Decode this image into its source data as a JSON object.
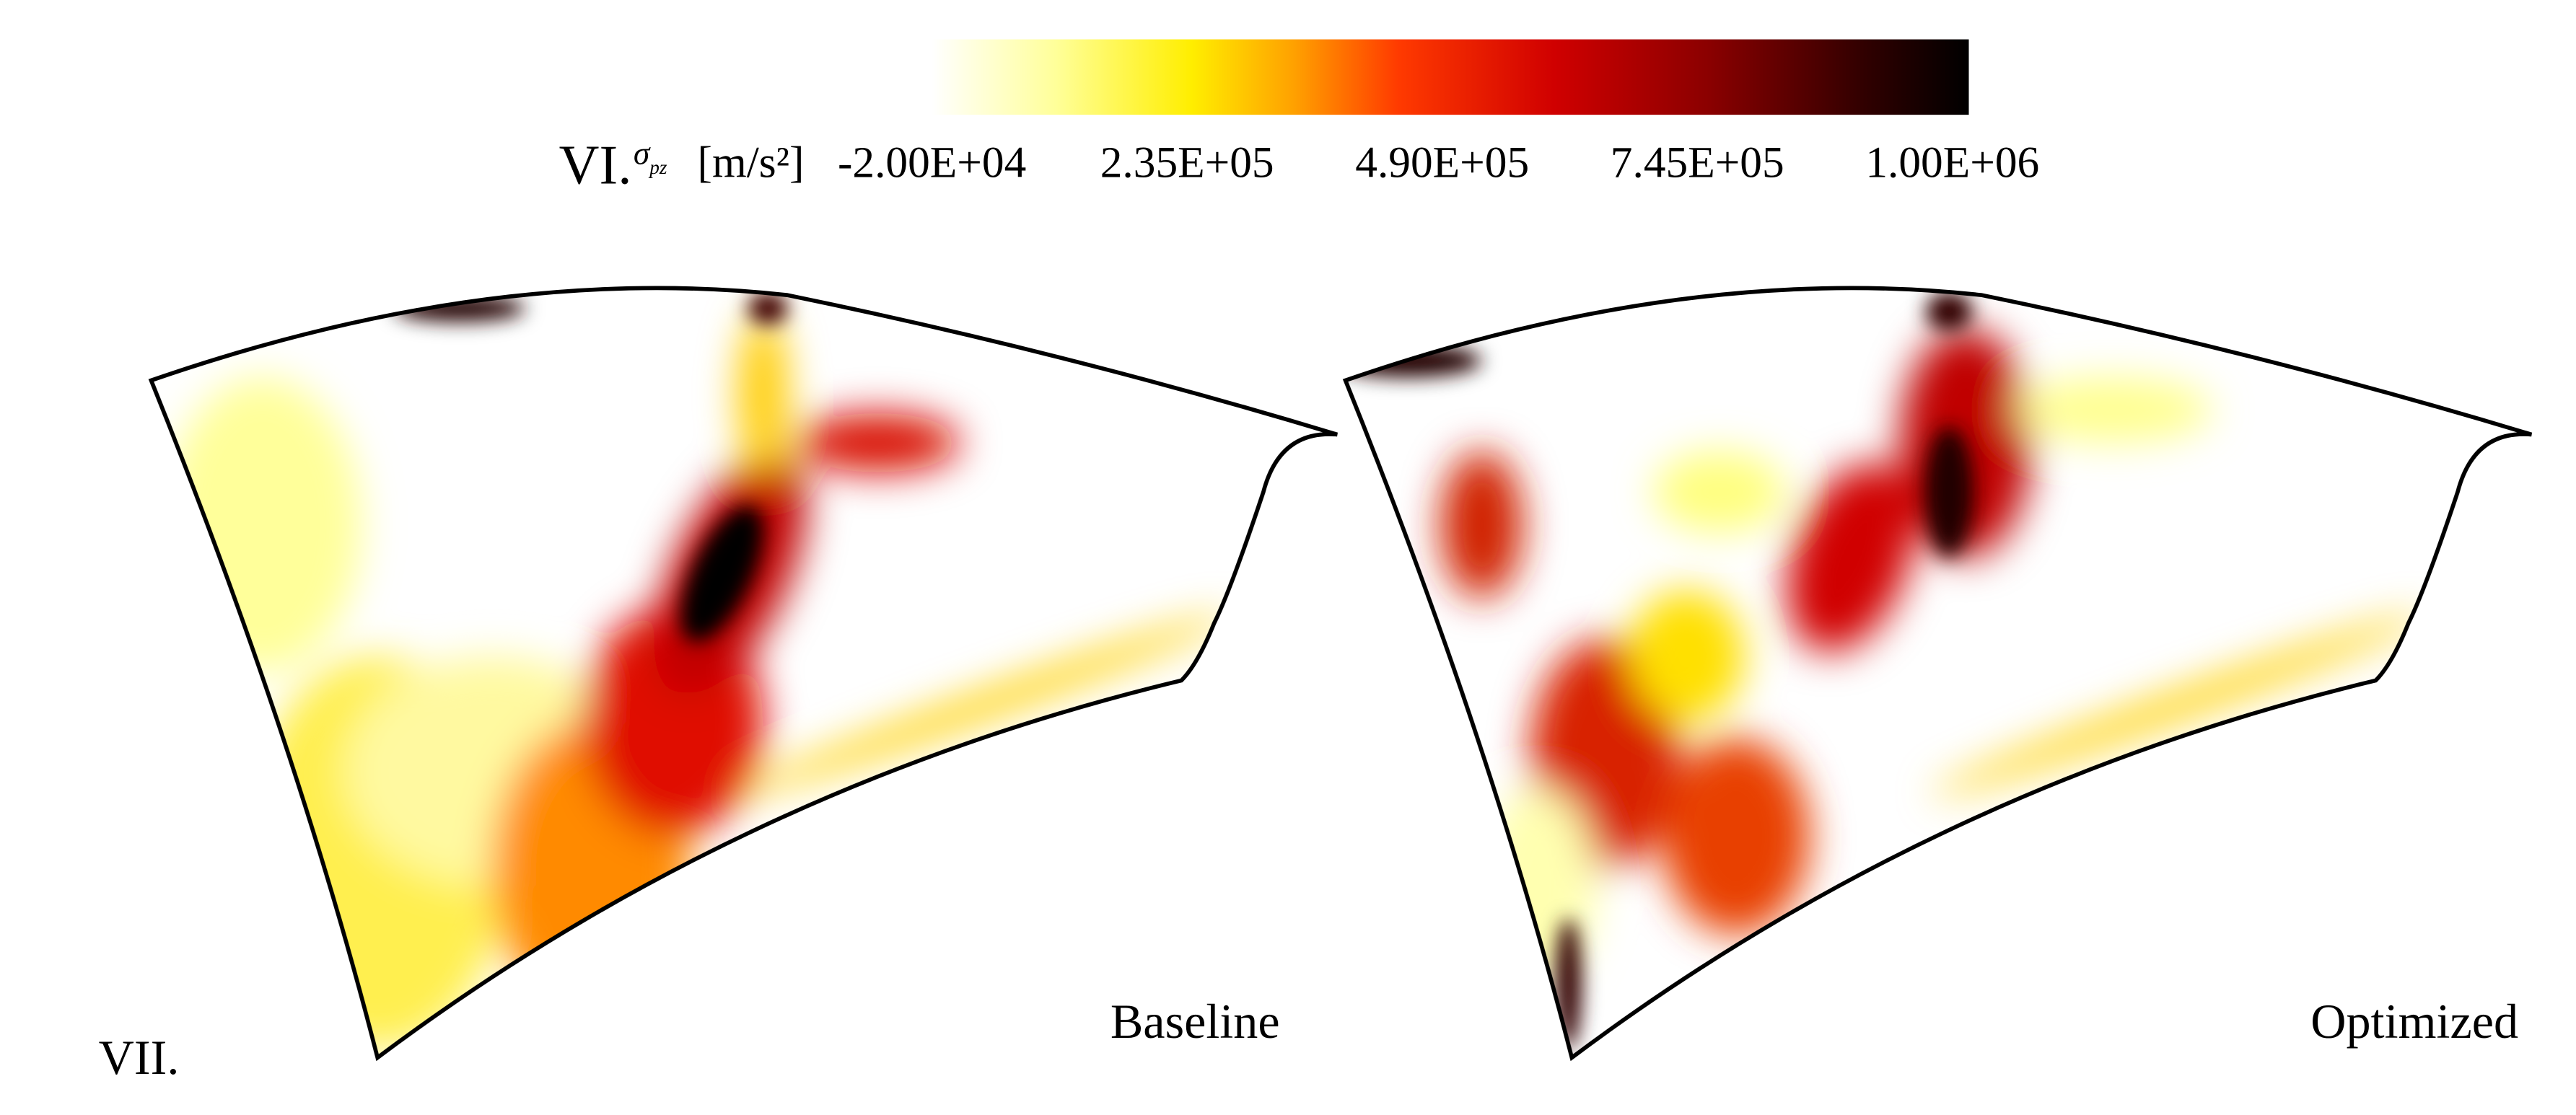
{
  "header": {
    "section_label": "VI.",
    "symbol": "σ",
    "symbol_subscript": "pz",
    "unit": "[m/s²]"
  },
  "colorbar": {
    "lim": [
      -20000,
      1000000
    ],
    "ticks": [
      {
        "value": -20000,
        "label": "-2.00E+04"
      },
      {
        "value": 235000,
        "label": "2.35E+05"
      },
      {
        "value": 490000,
        "label": "4.90E+05"
      },
      {
        "value": 745000,
        "label": "7.45E+05"
      },
      {
        "value": 1000000,
        "label": "1.00E+06"
      }
    ]
  },
  "figure": {
    "section_label": "VII.",
    "panels": [
      {
        "label": "Baseline"
      },
      {
        "label": "Optimized"
      }
    ]
  }
}
